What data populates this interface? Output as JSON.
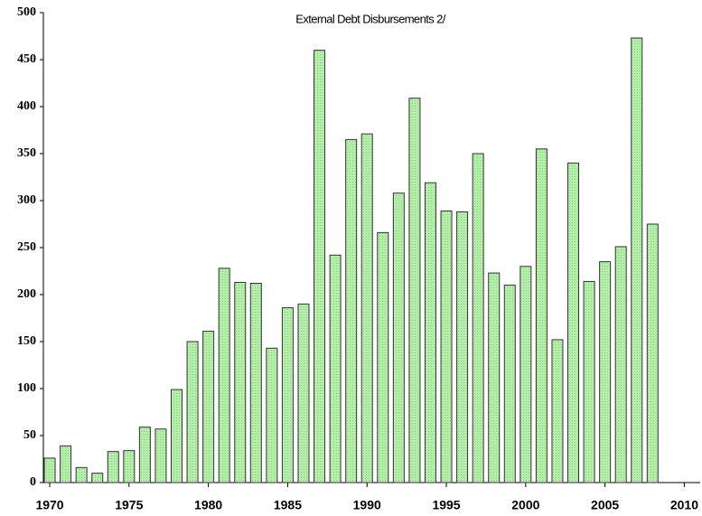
{
  "chart_data": {
    "type": "bar",
    "title": "External Debt Disbursements 2/",
    "x": [
      1970,
      1971,
      1972,
      1973,
      1974,
      1975,
      1976,
      1977,
      1978,
      1979,
      1980,
      1981,
      1982,
      1983,
      1984,
      1985,
      1986,
      1987,
      1988,
      1989,
      1990,
      1991,
      1992,
      1993,
      1994,
      1995,
      1996,
      1997,
      1998,
      1999,
      2000,
      2001,
      2002,
      2003,
      2004,
      2005,
      2006,
      2007,
      2008
    ],
    "values": [
      26,
      39,
      16,
      10,
      33,
      34,
      59,
      57,
      99,
      150,
      161,
      228,
      213,
      212,
      143,
      186,
      190,
      460,
      242,
      365,
      371,
      266,
      308,
      409,
      319,
      289,
      288,
      350,
      223,
      210,
      230,
      355,
      152,
      340,
      214,
      235,
      251,
      473,
      275
    ],
    "color": "#b4eeaa",
    "xlim": [
      1969.6,
      2011
    ],
    "xticks": [
      1970,
      1975,
      1980,
      1985,
      1990,
      1995,
      2000,
      2005,
      2010
    ],
    "ylim": [
      0,
      500
    ],
    "yticks": [
      0,
      50,
      100,
      150,
      200,
      250,
      300,
      350,
      400,
      450,
      500
    ]
  }
}
